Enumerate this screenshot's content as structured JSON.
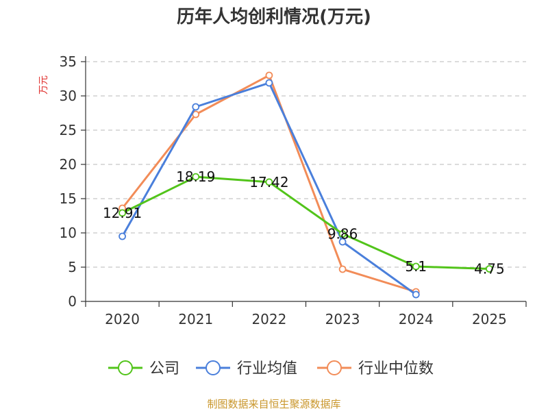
{
  "chart_data": {
    "type": "line",
    "title": "历年人均创利情况(万元)",
    "ylabel": "万元",
    "xlabel": "",
    "categories": [
      "2020",
      "2021",
      "2022",
      "2023",
      "2024",
      "2025"
    ],
    "ylim": [
      0,
      35
    ],
    "yticks": [
      0,
      5,
      10,
      15,
      20,
      25,
      30,
      35
    ],
    "grid": true,
    "legend_position": "bottom",
    "series": [
      {
        "name": "公司",
        "color": "#52c41a",
        "values": [
          12.91,
          18.19,
          17.42,
          9.86,
          5.1,
          4.75
        ],
        "labels": [
          "12.91",
          "18.19",
          "17.42",
          "9.86",
          "5.1",
          "4.75"
        ]
      },
      {
        "name": "行业均值",
        "color": "#4a7fdb",
        "values": [
          9.5,
          28.4,
          31.9,
          8.7,
          1.0,
          null
        ]
      },
      {
        "name": "行业中位数",
        "color": "#f28c58",
        "values": [
          13.6,
          27.3,
          33.0,
          4.7,
          1.4,
          null
        ]
      }
    ],
    "source": "制图数据来自恒生聚源数据库"
  }
}
